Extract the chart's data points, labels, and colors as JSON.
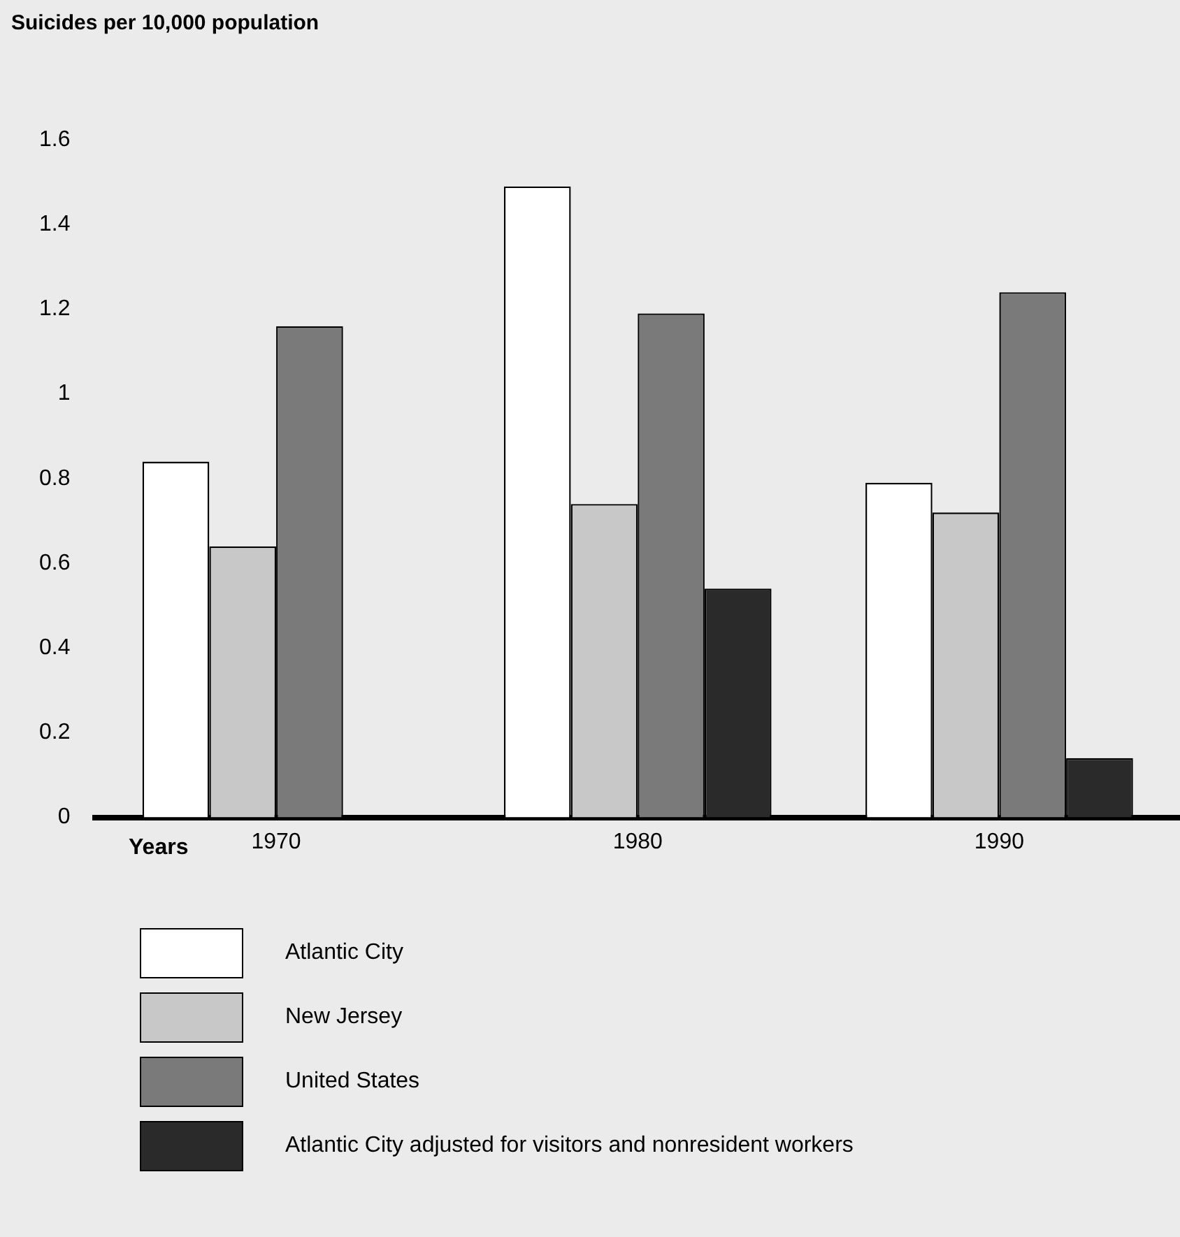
{
  "chart_data": {
    "type": "bar",
    "ylabel": "Suicides per 10,000 population",
    "xlabel": "Years",
    "categories": [
      "1970",
      "1980",
      "1990"
    ],
    "series": [
      {
        "name": "Atlantic City",
        "color": "#ffffff",
        "values": [
          0.84,
          1.49,
          0.79
        ]
      },
      {
        "name": "New Jersey",
        "color": "#c8c8c8",
        "values": [
          0.64,
          0.74,
          0.72
        ]
      },
      {
        "name": "United States",
        "color": "#7a7a7a",
        "values": [
          1.16,
          1.19,
          1.24
        ]
      },
      {
        "name": "Atlantic City adjusted for visitors and nonresident workers",
        "color": "#2a2a2a",
        "values": [
          null,
          0.54,
          0.14
        ]
      }
    ],
    "ylim": [
      0,
      1.6
    ],
    "yticks": [
      0,
      0.2,
      0.4,
      0.6,
      0.8,
      1,
      1.2,
      1.4,
      1.6
    ],
    "grid": false,
    "legend": "bottom"
  }
}
